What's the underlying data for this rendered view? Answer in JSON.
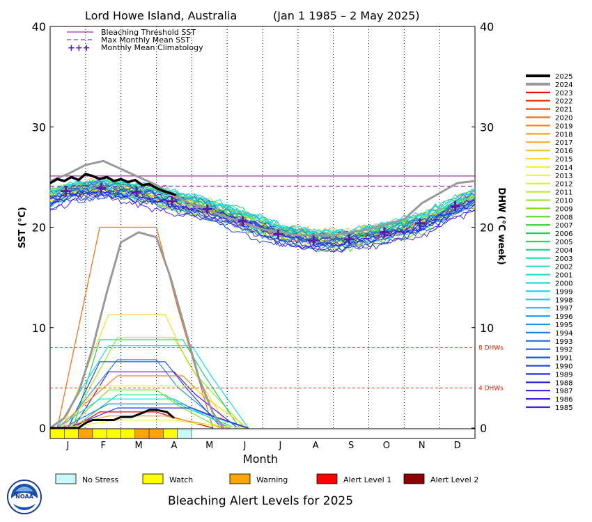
{
  "chart_data": {
    "type": "line",
    "title_location": "Lord Howe Island, Australia",
    "title_dates": "(Jan 1 1985 – 2 May 2025)",
    "xlabel": "Month",
    "ylabel_left": "SST (°C)",
    "ylabel_right": "DHW (°C week)",
    "ylim": [
      0,
      40
    ],
    "yticks": [
      0,
      10,
      20,
      30,
      40
    ],
    "months": [
      "J",
      "F",
      "M",
      "A",
      "M",
      "J",
      "J",
      "A",
      "S",
      "O",
      "N",
      "D"
    ],
    "legend_top": [
      {
        "label": "Bleaching Threshold SST",
        "style": "solid",
        "color": "#800080"
      },
      {
        "label": "Max Monthly Mean SST",
        "style": "dashed",
        "color": "#800080"
      },
      {
        "label": "Monthly Mean Climatology",
        "style": "plus",
        "color": "#5a1aa8"
      }
    ],
    "bleaching_threshold": 25.1,
    "max_monthly_mean": 24.1,
    "climatology": [
      23.6,
      23.9,
      23.5,
      22.6,
      21.8,
      20.6,
      19.3,
      18.7,
      18.8,
      19.5,
      20.4,
      22.1
    ],
    "dhw_reference_lines": [
      {
        "value": 8,
        "label": "8 DHWs",
        "color": "#cc2200"
      },
      {
        "value": 4,
        "label": "4 DHWs",
        "color": "#cc2200"
      }
    ],
    "year_legend": [
      {
        "year": "2025",
        "color": "#000000"
      },
      {
        "year": "2024",
        "color": "#999999"
      },
      {
        "year": "2023",
        "color": "#e60000"
      },
      {
        "year": "2022",
        "color": "#ec2a00"
      },
      {
        "year": "2021",
        "color": "#f04a00"
      },
      {
        "year": "2020",
        "color": "#f46a10"
      },
      {
        "year": "2019",
        "color": "#f58220"
      },
      {
        "year": "2018",
        "color": "#f8962a"
      },
      {
        "year": "2017",
        "color": "#fbab30"
      },
      {
        "year": "2016",
        "color": "#fdc030"
      },
      {
        "year": "2015",
        "color": "#ffd530"
      },
      {
        "year": "2014",
        "color": "#ffee30"
      },
      {
        "year": "2013",
        "color": "#eef530"
      },
      {
        "year": "2012",
        "color": "#d8f030"
      },
      {
        "year": "2011",
        "color": "#b8ec30"
      },
      {
        "year": "2010",
        "color": "#98e628"
      },
      {
        "year": "2009",
        "color": "#78e020"
      },
      {
        "year": "2008",
        "color": "#55d820"
      },
      {
        "year": "2007",
        "color": "#30d030"
      },
      {
        "year": "2006",
        "color": "#20d050"
      },
      {
        "year": "2005",
        "color": "#20d070"
      },
      {
        "year": "2004",
        "color": "#20d890"
      },
      {
        "year": "2003",
        "color": "#20e0a8"
      },
      {
        "year": "2002",
        "color": "#20e0c0"
      },
      {
        "year": "2001",
        "color": "#20e0d0"
      },
      {
        "year": "2000",
        "color": "#20d8e0"
      },
      {
        "year": "1999",
        "color": "#20d0e8"
      },
      {
        "year": "1998",
        "color": "#20c4ec"
      },
      {
        "year": "1997",
        "color": "#20b4ee"
      },
      {
        "year": "1996",
        "color": "#20a4ee"
      },
      {
        "year": "1995",
        "color": "#2094ee"
      },
      {
        "year": "1994",
        "color": "#2080e8"
      },
      {
        "year": "1993",
        "color": "#2070e0"
      },
      {
        "year": "1992",
        "color": "#2060e0"
      },
      {
        "year": "1991",
        "color": "#2050e0"
      },
      {
        "year": "1990",
        "color": "#2040e0"
      },
      {
        "year": "1989",
        "color": "#2030e0"
      },
      {
        "year": "1988",
        "color": "#2020e0"
      },
      {
        "year": "1987",
        "color": "#3020e0"
      },
      {
        "year": "1986",
        "color": "#4020e0"
      },
      {
        "year": "1985",
        "color": "#5020e0"
      }
    ],
    "series_2025_sst": {
      "x": [
        0,
        0.2,
        0.4,
        0.6,
        0.8,
        1.0,
        1.2,
        1.4,
        1.6,
        1.8,
        2.0,
        2.2,
        2.4,
        2.6,
        2.8,
        3.0,
        3.2,
        3.4,
        3.55
      ],
      "y": [
        24.4,
        24.8,
        24.6,
        25.0,
        24.7,
        25.3,
        25.1,
        24.8,
        25.0,
        24.6,
        24.8,
        24.5,
        24.7,
        24.2,
        24.3,
        23.9,
        23.6,
        23.4,
        23.2
      ]
    },
    "series_2024_sst": {
      "x": [
        0,
        0.5,
        1.0,
        1.5,
        2.0,
        2.5,
        3.0,
        3.5,
        4.0,
        5.0,
        6.0,
        7.0,
        8.0,
        9.0,
        10.0,
        10.5,
        11.0,
        11.5,
        12.0
      ],
      "y": [
        24.6,
        25.3,
        26.2,
        26.6,
        25.8,
        25.0,
        24.2,
        23.2,
        22.3,
        21.0,
        19.8,
        19.2,
        19.2,
        19.8,
        20.8,
        22.4,
        23.4,
        24.4,
        24.6
      ]
    },
    "series_2025_dhw": {
      "x": [
        0,
        0.8,
        1.0,
        1.2,
        1.5,
        1.8,
        2.0,
        2.3,
        2.6,
        2.8,
        3.0,
        3.3,
        3.5
      ],
      "y": [
        0,
        0,
        0.5,
        0.8,
        0.8,
        0.8,
        1.1,
        1.1,
        1.5,
        1.8,
        1.8,
        1.6,
        1.0
      ]
    },
    "series_2024_dhw": {
      "x": [
        0,
        0.4,
        0.8,
        1.2,
        1.6,
        2.0,
        2.5,
        3.0,
        3.4,
        3.8,
        4.2,
        4.6,
        4.9
      ],
      "y": [
        0,
        1.0,
        3.5,
        8.0,
        13.5,
        18.5,
        19.5,
        19.0,
        15.0,
        10.0,
        5.0,
        1.5,
        0
      ]
    },
    "alert_bar_2025": [
      "watch",
      "watch",
      "warning",
      "watch",
      "watch",
      "watch",
      "warning",
      "warning",
      "watch",
      "no_stress"
    ],
    "alert_footer_title": "Bleaching Alert Levels for 2025",
    "alert_levels": [
      {
        "key": "no_stress",
        "label": "No Stress",
        "color": "#c8f8f8"
      },
      {
        "key": "watch",
        "label": "Watch",
        "color": "#ffff00"
      },
      {
        "key": "warning",
        "label": "Warning",
        "color": "#ffa500"
      },
      {
        "key": "alert1",
        "label": "Alert Level 1",
        "color": "#ff0000"
      },
      {
        "key": "alert2",
        "label": "Alert Level 2",
        "color": "#8b0000"
      }
    ],
    "logo_text": "NOAA"
  }
}
